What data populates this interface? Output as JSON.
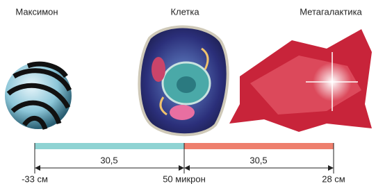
{
  "top_labels": [
    "Максимон",
    "Клетка",
    "Метагалактика"
  ],
  "spans": [
    "30,5",
    "30,5"
  ],
  "bottom_labels": [
    "-33 см",
    "50 микрон",
    "28 см"
  ]
}
